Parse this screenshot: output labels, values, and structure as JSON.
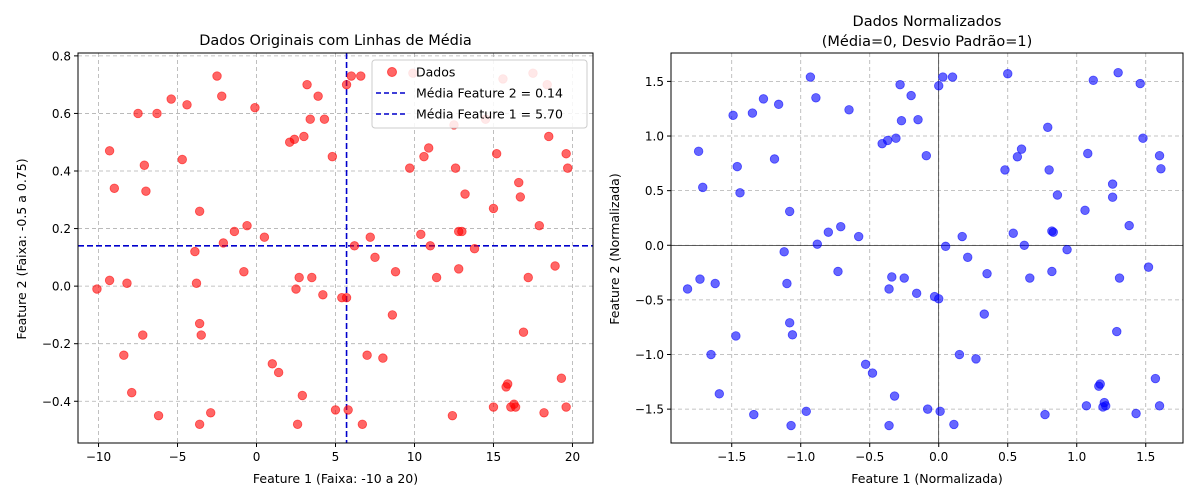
{
  "chart_data": [
    {
      "type": "scatter",
      "title": "Dados Originais com Linhas de Média",
      "xlabel": "Feature 1 (Faixa: -10 a 20)",
      "ylabel": "Feature 2 (Faixa: -0.5 a 0.75)",
      "xlim": [
        -11.3,
        21.3
      ],
      "ylim": [
        -0.545,
        0.81
      ],
      "xticks": [
        -10,
        -5,
        0,
        5,
        10,
        15,
        20
      ],
      "yticks": [
        -0.4,
        -0.2,
        0.0,
        0.2,
        0.4,
        0.6,
        0.8
      ],
      "xtick_labels": [
        "−10",
        "−5",
        "0",
        "5",
        "10",
        "15",
        "20"
      ],
      "ytick_labels": [
        "−0.4",
        "−0.2",
        "0.0",
        "0.2",
        "0.4",
        "0.6",
        "0.8"
      ],
      "grid": true,
      "legend_position": "top-right",
      "series": [
        {
          "name": "Dados",
          "color": "#ff0000",
          "marker": "circle",
          "points": [
            [
              -10.1,
              -0.01
            ],
            [
              -9.3,
              0.47
            ],
            [
              -9.3,
              0.02
            ],
            [
              -9.0,
              0.34
            ],
            [
              -8.4,
              -0.24
            ],
            [
              -8.2,
              0.01
            ],
            [
              -7.9,
              -0.37
            ],
            [
              -7.5,
              0.6
            ],
            [
              -7.2,
              -0.17
            ],
            [
              -7.1,
              0.42
            ],
            [
              -7.0,
              0.33
            ],
            [
              -6.3,
              0.6
            ],
            [
              -6.2,
              -0.45
            ],
            [
              -5.4,
              0.65
            ],
            [
              -4.7,
              0.44
            ],
            [
              -4.4,
              0.63
            ],
            [
              -3.9,
              0.12
            ],
            [
              -3.8,
              0.01
            ],
            [
              -3.6,
              -0.13
            ],
            [
              -3.6,
              0.26
            ],
            [
              -3.5,
              -0.17
            ],
            [
              -3.6,
              -0.48
            ],
            [
              -2.9,
              -0.44
            ],
            [
              -2.5,
              0.73
            ],
            [
              -2.2,
              0.66
            ],
            [
              -2.1,
              0.15
            ],
            [
              -1.4,
              0.19
            ],
            [
              -0.8,
              0.05
            ],
            [
              -0.6,
              0.21
            ],
            [
              -0.1,
              0.62
            ],
            [
              0.5,
              0.17
            ],
            [
              1.0,
              -0.27
            ],
            [
              1.4,
              -0.3
            ],
            [
              2.1,
              0.5
            ],
            [
              2.4,
              0.51
            ],
            [
              2.5,
              -0.01
            ],
            [
              2.6,
              -0.48
            ],
            [
              2.7,
              0.03
            ],
            [
              2.9,
              -0.38
            ],
            [
              3.0,
              0.52
            ],
            [
              3.2,
              0.7
            ],
            [
              3.4,
              0.58
            ],
            [
              3.5,
              0.03
            ],
            [
              3.9,
              0.66
            ],
            [
              4.2,
              -0.03
            ],
            [
              4.3,
              0.58
            ],
            [
              4.8,
              0.45
            ],
            [
              5.0,
              -0.43
            ],
            [
              5.4,
              -0.04
            ],
            [
              5.7,
              -0.04
            ],
            [
              5.7,
              0.7
            ],
            [
              5.8,
              -0.43
            ],
            [
              6.0,
              0.73
            ],
            [
              6.2,
              0.14
            ],
            [
              6.6,
              0.73
            ],
            [
              6.7,
              -0.48
            ],
            [
              7.0,
              -0.24
            ],
            [
              7.2,
              0.17
            ],
            [
              7.5,
              0.1
            ],
            [
              8.0,
              -0.25
            ],
            [
              8.6,
              -0.1
            ],
            [
              8.8,
              0.05
            ],
            [
              9.7,
              0.41
            ],
            [
              9.9,
              0.74
            ],
            [
              10.4,
              0.18
            ],
            [
              10.6,
              0.45
            ],
            [
              10.9,
              0.48
            ],
            [
              11.0,
              0.14
            ],
            [
              11.4,
              0.03
            ],
            [
              12.4,
              -0.45
            ],
            [
              12.5,
              0.56
            ],
            [
              12.6,
              0.41
            ],
            [
              12.8,
              0.19
            ],
            [
              12.8,
              0.06
            ],
            [
              13.0,
              0.19
            ],
            [
              13.2,
              0.32
            ],
            [
              13.8,
              0.13
            ],
            [
              14.5,
              0.58
            ],
            [
              15.0,
              0.27
            ],
            [
              15.0,
              -0.42
            ],
            [
              15.2,
              0.46
            ],
            [
              15.6,
              0.72
            ],
            [
              15.8,
              -0.35
            ],
            [
              15.9,
              -0.34
            ],
            [
              16.1,
              -0.42
            ],
            [
              16.3,
              -0.41
            ],
            [
              16.4,
              -0.42
            ],
            [
              16.6,
              0.36
            ],
            [
              16.7,
              0.31
            ],
            [
              16.9,
              -0.16
            ],
            [
              17.2,
              0.03
            ],
            [
              17.5,
              0.74
            ],
            [
              17.9,
              0.21
            ],
            [
              18.2,
              -0.44
            ],
            [
              18.4,
              0.7
            ],
            [
              18.5,
              0.52
            ],
            [
              18.9,
              0.07
            ],
            [
              19.3,
              -0.32
            ],
            [
              19.6,
              0.46
            ],
            [
              19.7,
              0.41
            ],
            [
              19.6,
              -0.42
            ]
          ]
        }
      ],
      "reference_lines": [
        {
          "name": "Média Feature 2 = 0.14",
          "orientation": "horizontal",
          "value": 0.14,
          "color": "#0000cc",
          "style": "dashed"
        },
        {
          "name": "Média Feature 1 = 5.70",
          "orientation": "vertical",
          "value": 5.7,
          "color": "#0000cc",
          "style": "dashed"
        }
      ]
    },
    {
      "type": "scatter",
      "title": "Dados Normalizados",
      "subtitle": "(Média=0, Desvio Padrão=1)",
      "xlabel": "Feature 1 (Normalizada)",
      "ylabel": "Feature 2 (Normalizada)",
      "xlim": [
        -1.94,
        1.77
      ],
      "ylim": [
        -1.81,
        1.76
      ],
      "xticks": [
        -1.5,
        -1.0,
        -0.5,
        0.0,
        0.5,
        1.0,
        1.5
      ],
      "yticks": [
        -1.5,
        -1.0,
        -0.5,
        0.0,
        0.5,
        1.0,
        1.5
      ],
      "xtick_labels": [
        "−1.5",
        "−1.0",
        "−0.5",
        "0.0",
        "0.5",
        "1.0",
        "1.5"
      ],
      "ytick_labels": [
        "−1.5",
        "−1.0",
        "−0.5",
        "0.0",
        "0.5",
        "1.0",
        "1.5"
      ],
      "grid": true,
      "zero_lines": true,
      "series": [
        {
          "color": "#0000ff",
          "marker": "circle",
          "points": [
            [
              -1.82,
              -0.4
            ],
            [
              -1.74,
              0.86
            ],
            [
              -1.73,
              -0.31
            ],
            [
              -1.71,
              0.53
            ],
            [
              -1.65,
              -1.0
            ],
            [
              -1.62,
              -0.35
            ],
            [
              -1.59,
              -1.36
            ],
            [
              -1.49,
              1.19
            ],
            [
              -1.47,
              -0.83
            ],
            [
              -1.46,
              0.72
            ],
            [
              -1.44,
              0.48
            ],
            [
              -1.35,
              1.21
            ],
            [
              -1.34,
              -1.55
            ],
            [
              -1.27,
              1.34
            ],
            [
              -1.19,
              0.79
            ],
            [
              -1.16,
              1.29
            ],
            [
              -1.12,
              -0.06
            ],
            [
              -1.1,
              -0.35
            ],
            [
              -1.08,
              0.31
            ],
            [
              -1.08,
              -0.71
            ],
            [
              -1.06,
              -0.82
            ],
            [
              -1.07,
              -1.65
            ],
            [
              -0.96,
              -1.52
            ],
            [
              -0.93,
              1.54
            ],
            [
              -0.89,
              1.35
            ],
            [
              -0.88,
              0.01
            ],
            [
              -0.8,
              0.12
            ],
            [
              -0.73,
              -0.24
            ],
            [
              -0.71,
              0.17
            ],
            [
              -0.65,
              1.24
            ],
            [
              -0.58,
              0.08
            ],
            [
              -0.53,
              -1.09
            ],
            [
              -0.48,
              -1.17
            ],
            [
              -0.41,
              0.93
            ],
            [
              -0.37,
              0.96
            ],
            [
              -0.36,
              -0.4
            ],
            [
              -0.36,
              -1.65
            ],
            [
              -0.34,
              -0.29
            ],
            [
              -0.32,
              -1.38
            ],
            [
              -0.31,
              0.98
            ],
            [
              -0.28,
              1.47
            ],
            [
              -0.27,
              1.14
            ],
            [
              -0.25,
              -0.3
            ],
            [
              -0.2,
              1.37
            ],
            [
              -0.16,
              -0.44
            ],
            [
              -0.15,
              1.15
            ],
            [
              -0.09,
              0.82
            ],
            [
              -0.08,
              -1.5
            ],
            [
              -0.03,
              -0.47
            ],
            [
              0.0,
              -0.49
            ],
            [
              0.0,
              1.46
            ],
            [
              0.01,
              -1.52
            ],
            [
              0.03,
              1.54
            ],
            [
              0.05,
              -0.01
            ],
            [
              0.1,
              1.54
            ],
            [
              0.11,
              -1.64
            ],
            [
              0.15,
              -1.0
            ],
            [
              0.17,
              0.08
            ],
            [
              0.21,
              -0.11
            ],
            [
              0.27,
              -1.04
            ],
            [
              0.33,
              -0.63
            ],
            [
              0.35,
              -0.26
            ],
            [
              0.48,
              0.69
            ],
            [
              0.5,
              1.57
            ],
            [
              0.54,
              0.11
            ],
            [
              0.57,
              0.81
            ],
            [
              0.6,
              0.88
            ],
            [
              0.62,
              0.0
            ],
            [
              0.66,
              -0.3
            ],
            [
              0.77,
              -1.55
            ],
            [
              0.79,
              1.08
            ],
            [
              0.8,
              0.69
            ],
            [
              0.82,
              0.13
            ],
            [
              0.82,
              -0.24
            ],
            [
              0.83,
              0.12
            ],
            [
              0.86,
              0.46
            ],
            [
              0.93,
              -0.04
            ],
            [
              1.06,
              0.32
            ],
            [
              1.07,
              -1.47
            ],
            [
              1.08,
              0.84
            ],
            [
              1.12,
              1.51
            ],
            [
              1.16,
              -1.29
            ],
            [
              1.17,
              -1.27
            ],
            [
              1.19,
              -1.48
            ],
            [
              1.2,
              -1.44
            ],
            [
              1.21,
              -1.47
            ],
            [
              1.26,
              0.56
            ],
            [
              1.26,
              0.44
            ],
            [
              1.29,
              -0.79
            ],
            [
              1.31,
              -0.3
            ],
            [
              1.3,
              1.58
            ],
            [
              1.38,
              0.18
            ],
            [
              1.43,
              -1.54
            ],
            [
              1.46,
              1.48
            ],
            [
              1.48,
              0.98
            ],
            [
              1.52,
              -0.2
            ],
            [
              1.57,
              -1.22
            ],
            [
              1.6,
              0.82
            ],
            [
              1.61,
              0.7
            ],
            [
              1.6,
              -1.47
            ]
          ]
        }
      ]
    }
  ]
}
